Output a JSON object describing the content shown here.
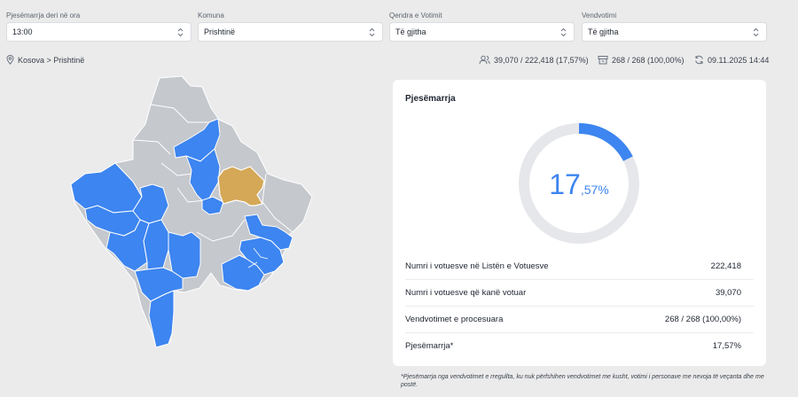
{
  "filters": [
    {
      "label": "Pjesëmarrja deri në ora",
      "value": "13:00"
    },
    {
      "label": "Komuna",
      "value": "Prishtinë"
    },
    {
      "label": "Qendra e Votimit",
      "value": "Të gjitha"
    },
    {
      "label": "Vendvotimi",
      "value": "Të gjitha"
    }
  ],
  "breadcrumb": "Kosova > Prishtinë",
  "header_stats": {
    "voters": "39,070 / 222,418 (17,57%)",
    "stations": "268 / 268 (100,00%)",
    "updated": "09.11.2025 14:44"
  },
  "card": {
    "title": "Pjesëmarrja",
    "turnout_fraction": 0.1757,
    "turnout_int": "17",
    "turnout_dec": ",57%",
    "rows": [
      {
        "label": "Numri i votuesve në Listën e Votuesve",
        "value": "222,418"
      },
      {
        "label": "Numri i votuesve që kanë votuar",
        "value": "39,070"
      },
      {
        "label": "Vendvotimet e procesuara",
        "value": "268 / 268 (100,00%)"
      },
      {
        "label": "Pjesëmarrja*",
        "value": "17,57%"
      }
    ]
  },
  "footnote": "*Pjesëmarrja nga vendvotimet e rregullta, ku nuk përfshihen vendvotimet me kusht, votimi i personave me nevoja të veçanta dhe me postë.",
  "colors": {
    "accent": "#3d85f0",
    "selected_municipality": "#d4a857",
    "other_municipality": "#c5c8cd",
    "donut_track": "#e6e7ea"
  },
  "icons": {
    "location": "map-pin-icon",
    "voters": "users-icon",
    "stations": "ballot-box-icon",
    "updated": "refresh-icon",
    "select": "chevron-up-down-icon"
  }
}
